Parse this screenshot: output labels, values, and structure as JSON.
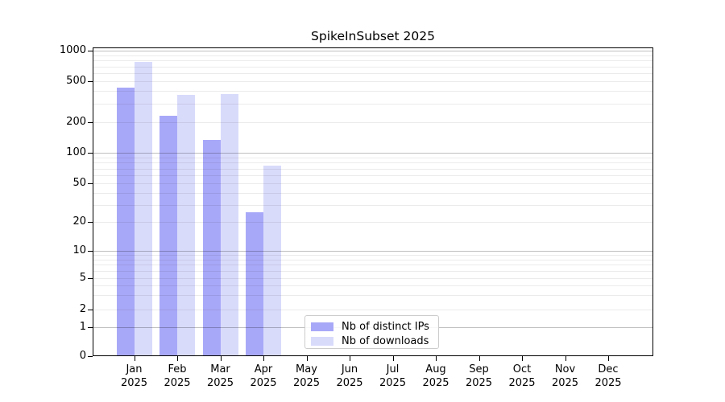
{
  "chart_data": {
    "type": "bar",
    "title": "SpikeInSubset 2025",
    "categories": [
      "Jan 2025",
      "Feb 2025",
      "Mar 2025",
      "Apr 2025",
      "May 2025",
      "Jun 2025",
      "Jul 2025",
      "Aug 2025",
      "Sep 2025",
      "Oct 2025",
      "Nov 2025",
      "Dec 2025"
    ],
    "x_tick_line1": [
      "Jan",
      "Feb",
      "Mar",
      "Apr",
      "May",
      "Jun",
      "Jul",
      "Aug",
      "Sep",
      "Oct",
      "Nov",
      "Dec"
    ],
    "x_tick_line2": "2025",
    "series": [
      {
        "name": "Nb of distinct IPs",
        "color": "#a8a8f8",
        "values": [
          430,
          230,
          135,
          25,
          0,
          0,
          0,
          0,
          0,
          0,
          0,
          0
        ]
      },
      {
        "name": "Nb of downloads",
        "color": "#d9dbfb",
        "values": [
          770,
          370,
          375,
          75,
          0,
          0,
          0,
          0,
          0,
          0,
          0,
          0
        ]
      }
    ],
    "xlabel": "",
    "ylabel": "",
    "yscale": "symlog",
    "y_tick_values": [
      0,
      1,
      2,
      5,
      10,
      20,
      50,
      100,
      200,
      500,
      1000
    ],
    "y_tick_labels": [
      "0",
      "1",
      "2",
      "5",
      "10",
      "20",
      "50",
      "100",
      "200",
      "500",
      "1000"
    ],
    "ylim": [
      0,
      1080
    ],
    "grid": "horizontal, minor and major, drawn over bars",
    "legend_position": "lower center-left inside axes"
  },
  "legend": {
    "items": [
      {
        "label": "Nb of distinct IPs",
        "color": "#a8a8f8"
      },
      {
        "label": "Nb of downloads",
        "color": "#d9dbfb"
      }
    ]
  },
  "colors": {
    "background": "#ffffff",
    "spine": "#000000",
    "major_grid": "rgba(0,0,0,0.25)",
    "minor_grid": "rgba(0,0,0,0.08)",
    "bar_distinct_ips": "#a8a8f8",
    "bar_downloads": "#d9dbfb"
  }
}
